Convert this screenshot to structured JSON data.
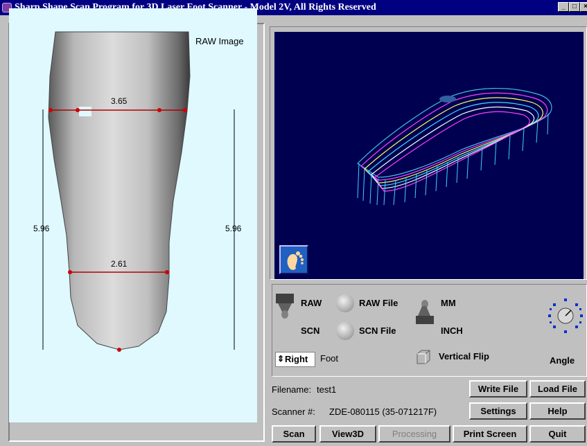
{
  "window": {
    "title": "Sharp Shape Scan Program for 3D Laser Foot Scanner - Model 2V, All Rights Reserved"
  },
  "raw_panel": {
    "label": "RAW Image",
    "measurements": {
      "top_width": "3.65",
      "bottom_width": "2.61",
      "left_length": "5.96",
      "right_length": "5.96"
    }
  },
  "controls": {
    "raw": "RAW",
    "raw_file": "RAW File",
    "mm": "MM",
    "scn": "SCN",
    "scn_file": "SCN File",
    "inch": "INCH",
    "side": "Right",
    "foot": "Foot",
    "vertical_flip": "Vertical Flip",
    "angle": "Angle"
  },
  "info": {
    "filename_label": "Filename:",
    "filename": "test1",
    "scanner_label": "Scanner #:",
    "scanner": "ZDE-080115 (35-071217F)"
  },
  "buttons": {
    "write_file": "Write File",
    "load_file": "Load File",
    "settings": "Settings",
    "help": "Help",
    "scan": "Scan",
    "view3d": "View3D",
    "processing": "Processing",
    "print_screen": "Print Screen",
    "quit": "Quit"
  },
  "icons": {
    "app": "app-icon",
    "foot": "foot-icon",
    "angle": "angle-dial-icon",
    "raw_toggle": "toggle-lever-icon",
    "unit_toggle": "toggle-lever-icon",
    "flip": "checkbox-icon"
  }
}
